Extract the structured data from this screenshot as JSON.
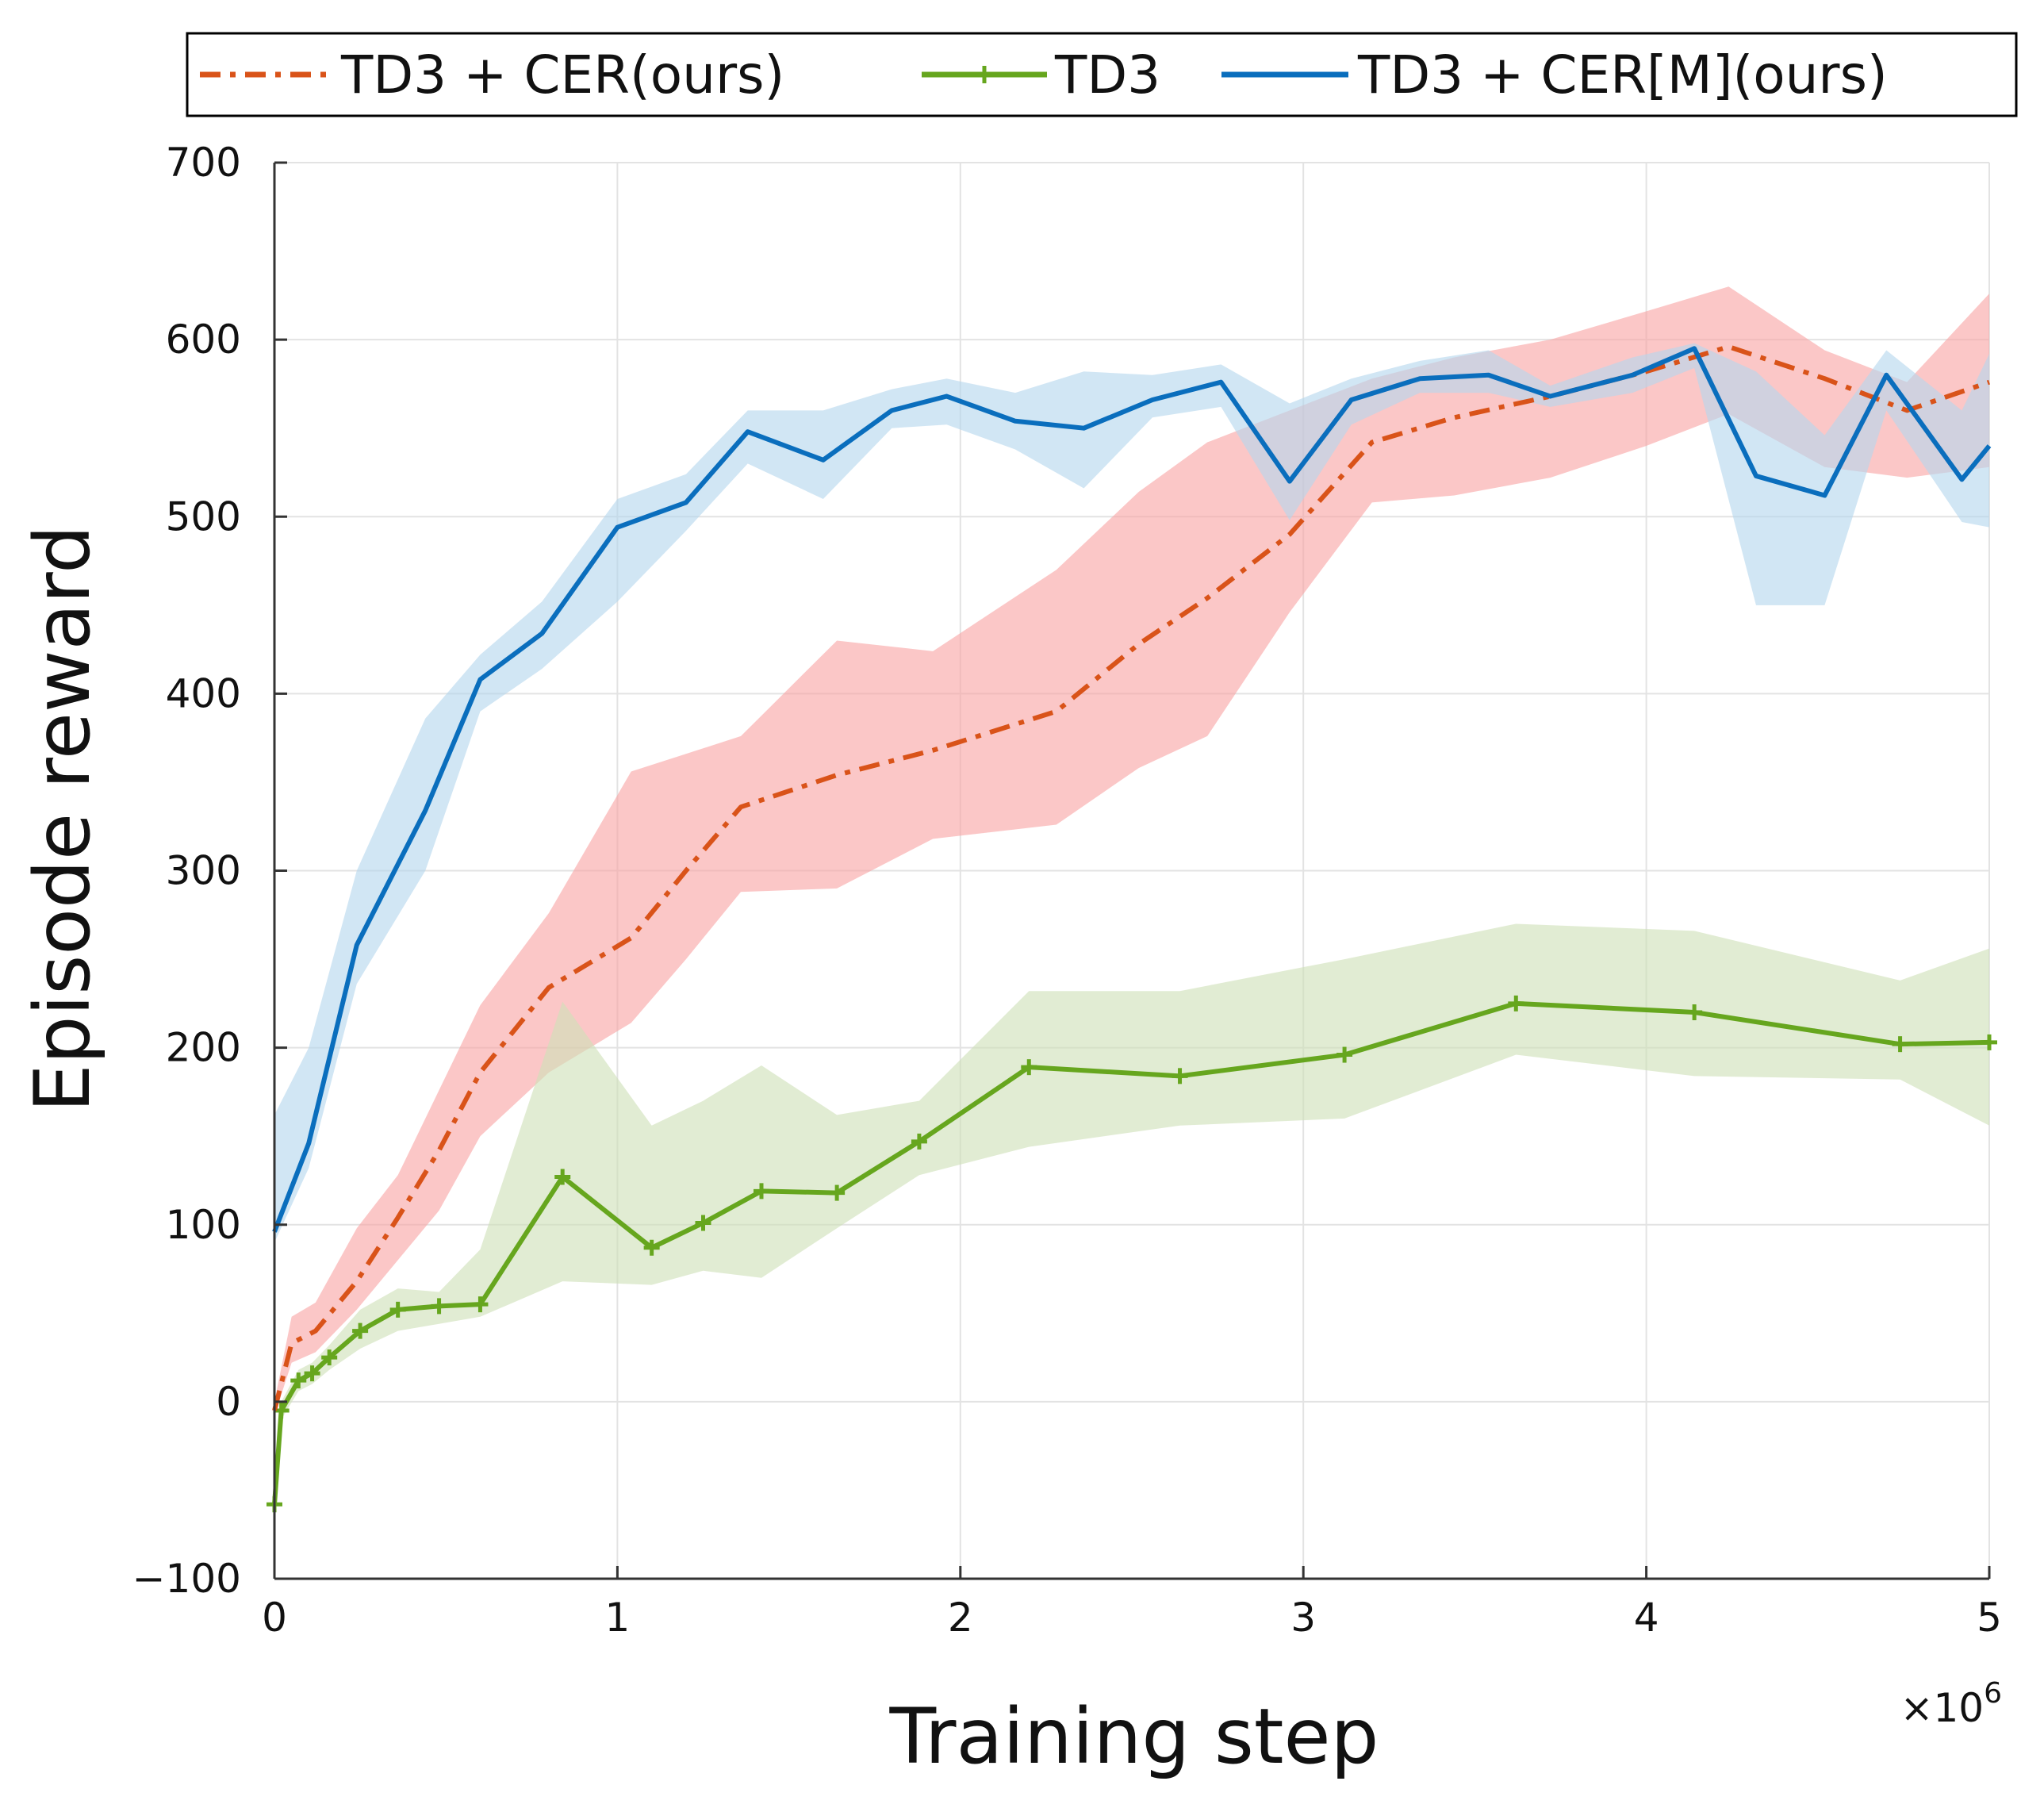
{
  "chart_data": {
    "type": "line",
    "xlabel": "Training step",
    "ylabel": "Episode reward",
    "x_multiplier_label": "×10",
    "x_multiplier_exp": "6",
    "xlim": [
      0,
      5
    ],
    "ylim": [
      -100,
      700
    ],
    "x_ticks": [
      0,
      1,
      2,
      3,
      4,
      5
    ],
    "x_tick_labels": [
      "0",
      "1",
      "2",
      "3",
      "4",
      "5"
    ],
    "y_ticks": [
      -100,
      0,
      100,
      200,
      300,
      400,
      500,
      600,
      700
    ],
    "y_tick_labels": [
      "−100",
      "0",
      "100",
      "200",
      "300",
      "400",
      "500",
      "600",
      "700"
    ],
    "grid": true,
    "legend_position": "top",
    "series": [
      {
        "name": "TD3 + CER(ours)",
        "color": "#d95319",
        "band_color": "#f8a4a4",
        "style": "dashdot",
        "x": [
          0.0,
          0.05,
          0.12,
          0.24,
          0.36,
          0.48,
          0.6,
          0.8,
          1.04,
          1.2,
          1.36,
          1.64,
          1.92,
          2.28,
          2.52,
          2.72,
          2.96,
          3.2,
          3.44,
          3.72,
          4.0,
          4.24,
          4.52,
          4.76,
          5.0
        ],
        "y": [
          -5,
          33,
          40,
          68,
          104,
          142,
          186,
          234,
          262,
          300,
          336,
          354,
          368,
          390,
          428,
          454,
          490,
          542,
          556,
          568,
          582,
          596,
          578,
          560,
          576
        ],
        "y_lower": [
          -8,
          22,
          28,
          52,
          80,
          108,
          150,
          186,
          214,
          250,
          288,
          290,
          318,
          326,
          358,
          376,
          446,
          508,
          512,
          522,
          540,
          558,
          528,
          522,
          528
        ],
        "y_upper": [
          0,
          48,
          56,
          98,
          128,
          176,
          224,
          276,
          356,
          366,
          376,
          430,
          424,
          470,
          514,
          542,
          560,
          578,
          590,
          600,
          616,
          630,
          594,
          576,
          626
        ]
      },
      {
        "name": "TD3",
        "color": "#66a61e",
        "band_color": "#cfe1b8",
        "style": "solid-markers",
        "x": [
          0.0,
          0.02,
          0.07,
          0.11,
          0.16,
          0.25,
          0.36,
          0.48,
          0.6,
          0.84,
          1.1,
          1.25,
          1.42,
          1.64,
          1.88,
          2.2,
          2.64,
          3.12,
          3.62,
          4.14,
          4.74,
          5.0
        ],
        "y": [
          -58,
          -5,
          12,
          16,
          25,
          40,
          52,
          54,
          55,
          127,
          87,
          101,
          119,
          118,
          147,
          189,
          184,
          196,
          225,
          220,
          202,
          203
        ],
        "y_lower": [
          -62,
          -10,
          6,
          10,
          18,
          30,
          40,
          44,
          48,
          68,
          66,
          74,
          70,
          98,
          128,
          144,
          156,
          160,
          196,
          184,
          182,
          156
        ],
        "y_upper": [
          -54,
          0,
          18,
          22,
          32,
          52,
          64,
          62,
          86,
          226,
          156,
          170,
          190,
          162,
          170,
          232,
          232,
          250,
          270,
          266,
          238,
          256
        ]
      },
      {
        "name": "TD3 + CER[M](ours)",
        "color": "#0a6ebd",
        "band_color": "#b5d6ee",
        "style": "solid",
        "x": [
          0.0,
          0.1,
          0.24,
          0.44,
          0.6,
          0.78,
          1.0,
          1.2,
          1.38,
          1.6,
          1.8,
          1.96,
          2.16,
          2.36,
          2.56,
          2.76,
          2.96,
          3.14,
          3.34,
          3.54,
          3.72,
          3.96,
          4.14,
          4.32,
          4.52,
          4.7,
          4.92,
          5.0
        ],
        "y": [
          96,
          146,
          258,
          334,
          408,
          434,
          494,
          508,
          548,
          532,
          560,
          568,
          554,
          550,
          566,
          576,
          520,
          566,
          578,
          580,
          568,
          580,
          595,
          523,
          512,
          580,
          521,
          540
        ],
        "y_lower": [
          90,
          132,
          236,
          300,
          390,
          414,
          452,
          492,
          530,
          510,
          550,
          552,
          538,
          516,
          556,
          562,
          498,
          552,
          570,
          570,
          562,
          570,
          584,
          450,
          450,
          560,
          497,
          494
        ],
        "y_upper": [
          162,
          200,
          300,
          386,
          422,
          452,
          510,
          524,
          560,
          560,
          572,
          578,
          570,
          582,
          580,
          586,
          564,
          578,
          588,
          594,
          574,
          590,
          598,
          582,
          546,
          594,
          560,
          592
        ]
      }
    ]
  }
}
